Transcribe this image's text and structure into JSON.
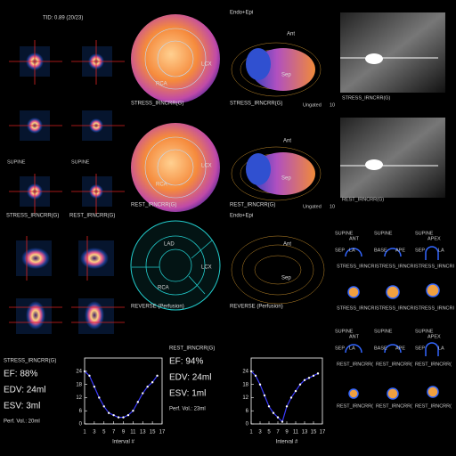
{
  "ui": {
    "tid": "TID: 0.89 (20/23)",
    "stress": {
      "mode": "Endo+Epi",
      "polar_labels": [
        "LCX",
        "RCA"
      ],
      "polar_title": "STRESS_IRNCRR(G)",
      "ant": "Ant",
      "sep": "Sep",
      "surface_title": "STRESS_IRNCRR(G)",
      "gating": "Ungated",
      "frame": "10",
      "planar_title": "STRESS_IRNCRR(G)"
    },
    "rest": {
      "mode": "Endo+Epi",
      "polar_labels": [
        "LCX",
        "RCA"
      ],
      "polar_title": "REST_IRNCRR(G)",
      "ant": "Ant",
      "sep": "Sep",
      "surface_title": "REST_IRNCRR(G)",
      "gating": "Ungated",
      "frame": "10",
      "planar_title": "REST_IRNCRR(G)"
    },
    "slices": {
      "orient": [
        "SUPINE",
        "SUPINE"
      ],
      "labels": [
        "STRESS_IRNCRR(G)",
        "REST_IRNCRR(G)"
      ]
    },
    "reverse": {
      "polar_labels": [
        "LAD",
        "LCX",
        "RCA"
      ],
      "polar_title": "REVERSE (Perfusion)",
      "ant": "Ant",
      "sep": "Sep",
      "surface_title": "REVERSE (Perfusion)"
    },
    "thumbs": [
      {
        "top": [
          "SUPINE",
          "ANT",
          "SUPINE",
          "SUPINE",
          "APEX"
        ],
        "mid": [
          "SEP",
          "LA",
          "BASE",
          "APE",
          "SEP",
          "LA"
        ],
        "labels": [
          "STRESS_IRNCRI",
          "STRESS_IRNCRI",
          "STRESS_IRNCRI",
          "STRESS_IRNCRI",
          "STRESS_IRNCRI",
          "STRESS_IRNCRI"
        ]
      },
      {
        "top": [
          "SUPINE",
          "ANT",
          "SUPINE",
          "SUPINE",
          "APEX"
        ],
        "mid": [
          "SEP",
          "LA",
          "BASE",
          "APE",
          "SEP",
          "LA"
        ],
        "labels": [
          "REST_IRNCRR(",
          "REST_IRNCRR(",
          "REST_IRNCRR(",
          "REST_IRNCRR(",
          "REST_IRNCRR(",
          "REST_IRNCRR("
        ]
      }
    ],
    "stats": [
      {
        "title": "STRESS_IRNCRR(G)",
        "ef": "EF: 88%",
        "edv": "EDV: 24ml",
        "esv": "ESV: 3ml",
        "perf": "Perf. Vol.: 20ml"
      },
      {
        "title": "REST_IRNCRR(G)",
        "ef": "EF: 94%",
        "edv": "EDV: 24ml",
        "esv": "ESV: 1ml",
        "perf": "Perf. Vol.: 23ml"
      }
    ]
  },
  "chart_data": [
    {
      "type": "line",
      "x_label": "Interval #",
      "x": [
        1,
        2,
        3,
        4,
        5,
        6,
        7,
        8,
        9,
        10,
        11,
        12,
        13,
        14,
        15,
        16
      ],
      "values": [
        24,
        22,
        17,
        12,
        8,
        5,
        4,
        3,
        3,
        4,
        6,
        10,
        14,
        17,
        19,
        22
      ],
      "color": "#3b3bff",
      "xlim": [
        1,
        17
      ],
      "xticks": [
        1,
        3,
        5,
        7,
        9,
        11,
        13,
        15,
        17
      ],
      "ylim": [
        0,
        26
      ],
      "yticks": [
        0,
        6,
        12,
        18,
        24
      ]
    },
    {
      "type": "line",
      "x_label": "Interval #",
      "x": [
        1,
        2,
        3,
        4,
        5,
        6,
        7,
        8,
        9,
        10,
        11,
        12,
        13,
        14,
        15,
        16
      ],
      "values": [
        24,
        22,
        18,
        13,
        8,
        5,
        3,
        1,
        8,
        12,
        15,
        18,
        20,
        21,
        22,
        23
      ],
      "color": "#3b3bff",
      "xlim": [
        1,
        17
      ],
      "xticks": [
        1,
        3,
        5,
        7,
        9,
        11,
        13,
        15,
        17
      ],
      "ylim": [
        0,
        26
      ],
      "yticks": [
        0,
        6,
        12,
        18,
        24
      ]
    }
  ]
}
